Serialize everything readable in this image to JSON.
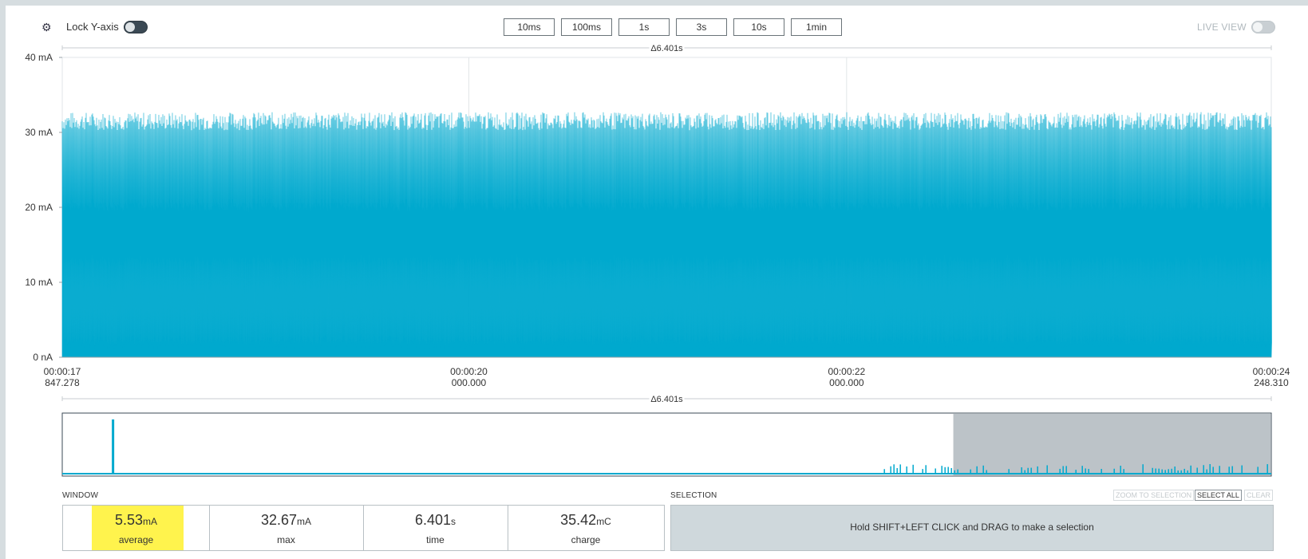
{
  "toolbar": {
    "lock_y_label": "Lock Y-axis",
    "live_view_label": "LIVE VIEW",
    "zoom_buttons": [
      "10ms",
      "100ms",
      "1s",
      "3s",
      "10s",
      "1min"
    ]
  },
  "chart_data": {
    "type": "area",
    "title": "",
    "xlabel": "",
    "ylabel": "",
    "y_ticks": [
      "40 mA",
      "30 mA",
      "20 mA",
      "10 mA",
      "0 nA"
    ],
    "y_tick_values": [
      40,
      30,
      20,
      10,
      0
    ],
    "ylim": [
      0,
      40
    ],
    "y_unit": "mA",
    "x_ticks": [
      {
        "time": "00:00:17",
        "ms": "847.278"
      },
      {
        "time": "00:00:20",
        "ms": "000.000"
      },
      {
        "time": "00:00:22",
        "ms": "000.000"
      },
      {
        "time": "00:00:24",
        "ms": "248.310"
      }
    ],
    "xlim_seconds": [
      17.847278,
      24.24831
    ],
    "delta_label": "Δ6.401s",
    "series": [
      {
        "pattern": "dense pulses",
        "baseline_mA": 1.5,
        "peak_mA": 31.5,
        "peak_max_mA": 32.67
      }
    ],
    "color": "#00a9ce",
    "grid": "vertical lines at labeled x ticks"
  },
  "minimap": {
    "delta_label": "Δ6.401s",
    "selected_window_fraction": [
      0.737,
      1.0
    ],
    "spike_position_fraction": 0.042
  },
  "window": {
    "label": "WINDOW",
    "stats": [
      {
        "value": "5.53",
        "unit": "mA",
        "label": "average"
      },
      {
        "value": "32.67",
        "unit": "mA",
        "label": "max"
      },
      {
        "value": "6.401",
        "unit": "s",
        "label": "time"
      },
      {
        "value": "35.42",
        "unit": "mC",
        "label": "charge"
      }
    ]
  },
  "selection": {
    "label": "SELECTION",
    "hint": "Hold SHIFT+LEFT CLICK and DRAG to make a selection",
    "zoom_to_selection": "ZOOM TO SELECTION",
    "select_all": "SELECT ALL",
    "clear": "CLEAR"
  },
  "colors": {
    "accent": "#00a9ce",
    "highlight": "#fff34d",
    "toggle_dark": "#3b4954",
    "selection_bg": "#cfd8dc"
  }
}
